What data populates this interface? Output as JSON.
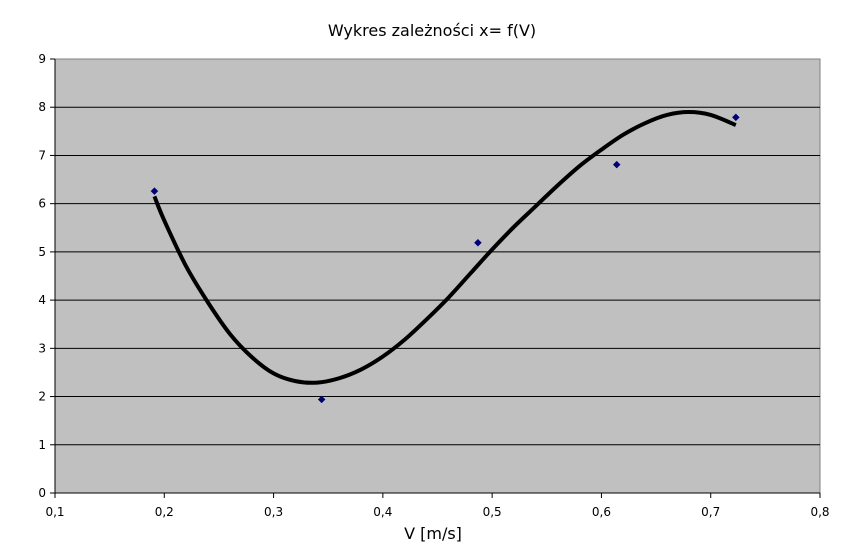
{
  "chart_data": {
    "type": "scatter",
    "title": "Wykres zależności x= f(V)",
    "xlabel": "V [m/s]",
    "ylabel": "",
    "xlim": [
      0.1,
      0.8
    ],
    "ylim": [
      0,
      9
    ],
    "x_ticks": [
      "0,1",
      "0,2",
      "0,3",
      "0,4",
      "0,5",
      "0,6",
      "0,7",
      "0,8"
    ],
    "y_ticks": [
      "0",
      "1",
      "2",
      "3",
      "4",
      "5",
      "6",
      "7",
      "8",
      "9"
    ],
    "grid": true,
    "legend": "none",
    "plot_background": "#c0c0c0",
    "point_color": "#00007a",
    "trend_color": "#000000",
    "series": [
      {
        "kind": "points",
        "x": [
          0.191,
          0.344,
          0.487,
          0.614,
          0.723
        ],
        "y": [
          6.26,
          1.94,
          5.19,
          6.81,
          7.79
        ]
      },
      {
        "kind": "trendline",
        "x": [
          0.191,
          0.2,
          0.22,
          0.24,
          0.26,
          0.28,
          0.3,
          0.32,
          0.34,
          0.36,
          0.38,
          0.4,
          0.42,
          0.44,
          0.46,
          0.48,
          0.5,
          0.52,
          0.54,
          0.56,
          0.58,
          0.6,
          0.62,
          0.64,
          0.66,
          0.68,
          0.7,
          0.723
        ],
        "y": [
          6.15,
          5.65,
          4.7,
          3.95,
          3.3,
          2.82,
          2.48,
          2.32,
          2.29,
          2.38,
          2.56,
          2.83,
          3.18,
          3.6,
          4.05,
          4.55,
          5.05,
          5.52,
          5.95,
          6.38,
          6.78,
          7.12,
          7.43,
          7.67,
          7.84,
          7.9,
          7.84,
          7.63
        ]
      }
    ]
  }
}
